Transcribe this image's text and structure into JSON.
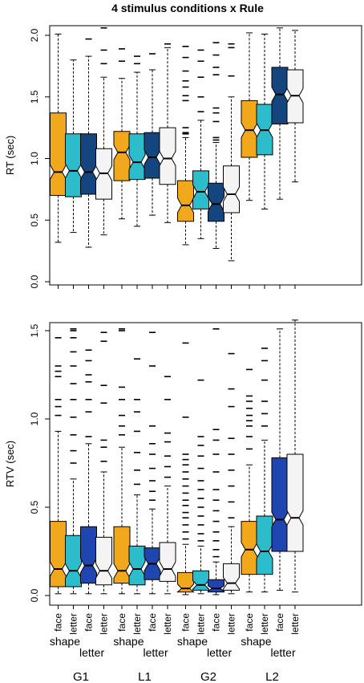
{
  "title": "4 stimulus conditions x Rule",
  "colors": {
    "shape_face": "#F2A81D",
    "shape_letter": "#2DBCCB",
    "letter_face": "#1C4E8F",
    "letter_letter": "#F4F4F4",
    "rt_letter_face": "#15457E",
    "rtv_letter_face": "#1F45B0"
  },
  "labels": {
    "groups": [
      "G1",
      "L1",
      "G2",
      "L2"
    ],
    "conditions": [
      "face",
      "letter",
      "face",
      "letter"
    ],
    "rules": [
      "shape",
      "letter"
    ]
  },
  "chart_data": [
    {
      "type": "boxplot",
      "notched": true,
      "ylabel": "RT (sec)",
      "ylim": [
        0,
        2.0
      ],
      "yticks": [
        "0.0",
        "0.5",
        "1.0",
        "1.5",
        "2.0"
      ],
      "groups": [
        "G1",
        "L1",
        "G2",
        "L2"
      ],
      "series": [
        {
          "rule": "shape",
          "condition": "face",
          "boxes": [
            {
              "group": "G1",
              "lw": 0.32,
              "q1": 0.7,
              "med": 0.89,
              "q3": 1.37,
              "uw": 2.01
            },
            {
              "group": "L1",
              "lw": 0.51,
              "q1": 0.82,
              "med": 1.05,
              "q3": 1.22,
              "uw": 1.65,
              "outliers": [
                1.79,
                1.89
              ]
            },
            {
              "group": "G2",
              "lw": 0.3,
              "q1": 0.49,
              "med": 0.62,
              "q3": 0.82,
              "uw": 1.17,
              "outliers": [
                1.2,
                1.21,
                1.25,
                1.47,
                1.51,
                1.58,
                1.63,
                1.71,
                1.82,
                1.91
              ]
            },
            {
              "group": "L2",
              "lw": 0.66,
              "q1": 1.01,
              "med": 1.23,
              "q3": 1.47,
              "uw": 2.02
            }
          ]
        },
        {
          "rule": "shape",
          "condition": "letter",
          "boxes": [
            {
              "group": "G1",
              "lw": 0.4,
              "q1": 0.69,
              "med": 0.9,
              "q3": 1.2,
              "uw": 1.8
            },
            {
              "group": "L1",
              "lw": 0.45,
              "q1": 0.83,
              "med": 0.97,
              "q3": 1.2,
              "uw": 1.7,
              "outliers": [
                1.77,
                1.83
              ]
            },
            {
              "group": "G2",
              "lw": 0.35,
              "q1": 0.59,
              "med": 0.73,
              "q3": 0.9,
              "uw": 1.31,
              "outliers": [
                1.38,
                1.5,
                1.66,
                1.79,
                1.88
              ]
            },
            {
              "group": "L2",
              "lw": 0.59,
              "q1": 1.03,
              "med": 1.23,
              "q3": 1.44,
              "uw": 2.01
            }
          ]
        },
        {
          "rule": "letter",
          "condition": "face",
          "boxes": [
            {
              "group": "G1",
              "lw": 0.28,
              "q1": 0.71,
              "med": 0.89,
              "q3": 1.2,
              "uw": 1.83,
              "outliers": [
                1.97
              ]
            },
            {
              "group": "L1",
              "lw": 0.54,
              "q1": 0.84,
              "med": 1.01,
              "q3": 1.21,
              "uw": 1.72,
              "outliers": [
                1.85
              ]
            },
            {
              "group": "G2",
              "lw": 0.27,
              "q1": 0.49,
              "med": 0.63,
              "q3": 0.8,
              "uw": 1.13,
              "outliers": [
                1.15,
                1.17,
                1.3,
                1.37,
                1.41,
                1.68,
                1.74,
                1.84,
                1.94
              ]
            },
            {
              "group": "L2",
              "lw": 0.67,
              "q1": 1.28,
              "med": 1.52,
              "q3": 1.74,
              "uw": 2.06
            }
          ]
        },
        {
          "rule": "letter",
          "condition": "letter",
          "boxes": [
            {
              "group": "G1",
              "lw": 0.38,
              "q1": 0.67,
              "med": 0.88,
              "q3": 1.08,
              "uw": 1.66,
              "outliers": [
                1.77,
                1.88,
                2.06
              ]
            },
            {
              "group": "L1",
              "lw": 0.48,
              "q1": 0.79,
              "med": 1.0,
              "q3": 1.25,
              "uw": 1.9,
              "outliers": [
                1.93
              ]
            },
            {
              "group": "G2",
              "lw": 0.17,
              "q1": 0.56,
              "med": 0.71,
              "q3": 0.94,
              "uw": 1.5,
              "outliers": [
                1.67,
                1.9,
                1.93
              ]
            },
            {
              "group": "L2",
              "lw": 0.81,
              "q1": 1.29,
              "med": 1.51,
              "q3": 1.72,
              "uw": 2.04
            }
          ]
        }
      ]
    },
    {
      "type": "boxplot",
      "notched": true,
      "ylabel": "RTV (sec)",
      "ylim": [
        0,
        1.5
      ],
      "yticks": [
        "0.0",
        "0.5",
        "1.0",
        "1.5"
      ],
      "groups": [
        "G1",
        "L1",
        "G2",
        "L2"
      ],
      "series": [
        {
          "rule": "shape",
          "condition": "face",
          "boxes": [
            {
              "group": "G1",
              "lw": 0.01,
              "q1": 0.05,
              "med": 0.15,
              "q3": 0.42,
              "uw": 0.93,
              "outliers": [
                1.02,
                1.07,
                1.11,
                1.24,
                1.27,
                1.3,
                1.46
              ]
            },
            {
              "group": "L1",
              "lw": 0.01,
              "q1": 0.07,
              "med": 0.14,
              "q3": 0.39,
              "uw": 0.84,
              "outliers": [
                0.91,
                0.96,
                1.02,
                1.11,
                1.18,
                1.5,
                1.51
              ]
            },
            {
              "group": "G2",
              "lw": 0.005,
              "q1": 0.02,
              "med": 0.04,
              "q3": 0.13,
              "uw": 0.29,
              "outliers": [
                0.32,
                0.36,
                0.4,
                0.44,
                0.47,
                0.51,
                0.54,
                0.58,
                0.62,
                0.66,
                0.7,
                0.74,
                0.77,
                0.8,
                1.01,
                1.43
              ]
            },
            {
              "group": "L2",
              "lw": 0.02,
              "q1": 0.12,
              "med": 0.26,
              "q3": 0.42,
              "uw": 0.74,
              "outliers": [
                0.83,
                0.9,
                0.96,
                0.99,
                1.02,
                1.06,
                1.1,
                1.13,
                1.28
              ]
            }
          ]
        },
        {
          "rule": "shape",
          "condition": "letter",
          "boxes": [
            {
              "group": "G1",
              "lw": 0.01,
              "q1": 0.05,
              "med": 0.14,
              "q3": 0.34,
              "uw": 0.66,
              "outliers": [
                0.75,
                0.82,
                0.91,
                1.01,
                1.11,
                1.2,
                1.3,
                1.38,
                1.46,
                1.5,
                1.51
              ]
            },
            {
              "group": "L1",
              "lw": 0.01,
              "q1": 0.06,
              "med": 0.15,
              "q3": 0.28,
              "uw": 0.57,
              "outliers": [
                0.63,
                0.71,
                0.81,
                0.93,
                1.04,
                1.11,
                1.34
              ]
            },
            {
              "group": "G2",
              "lw": 0.01,
              "q1": 0.03,
              "med": 0.06,
              "q3": 0.14,
              "uw": 0.28,
              "outliers": [
                0.31,
                0.35,
                0.4,
                0.45,
                0.5,
                0.55,
                0.6,
                0.65,
                0.72,
                0.79,
                0.85,
                0.9,
                1.22
              ]
            },
            {
              "group": "L2",
              "lw": 0.02,
              "q1": 0.12,
              "med": 0.25,
              "q3": 0.45,
              "uw": 0.88,
              "outliers": [
                0.96,
                1.03,
                1.1,
                1.22,
                1.33,
                1.4
              ]
            }
          ]
        },
        {
          "rule": "letter",
          "condition": "face",
          "boxes": [
            {
              "group": "G1",
              "lw": 0.01,
              "q1": 0.07,
              "med": 0.17,
              "q3": 0.39,
              "uw": 0.86,
              "outliers": [
                0.9,
                1.04,
                1.11,
                1.21,
                1.25,
                1.33,
                1.39
              ]
            },
            {
              "group": "L1",
              "lw": 0.01,
              "q1": 0.09,
              "med": 0.18,
              "q3": 0.27,
              "uw": 0.49,
              "outliers": [
                0.54,
                0.59,
                0.65,
                0.72,
                0.8,
                0.86,
                0.96,
                1.3,
                1.49
              ]
            },
            {
              "group": "G2",
              "lw": 0.005,
              "q1": 0.02,
              "med": 0.04,
              "q3": 0.09,
              "uw": 0.19,
              "outliers": [
                0.22,
                0.26,
                0.31,
                0.36,
                0.42,
                0.48,
                0.54,
                0.6,
                0.7,
                0.8,
                0.88,
                0.94,
                1.51
              ]
            },
            {
              "group": "L2",
              "lw": 0.03,
              "q1": 0.25,
              "med": 0.43,
              "q3": 0.78,
              "uw": 1.51
            }
          ]
        },
        {
          "rule": "letter",
          "condition": "letter",
          "boxes": [
            {
              "group": "G1",
              "lw": 0.01,
              "q1": 0.06,
              "med": 0.14,
              "q3": 0.33,
              "uw": 0.7,
              "outliers": [
                0.76,
                0.84,
                0.88,
                1.09,
                1.19,
                1.44,
                1.49
              ]
            },
            {
              "group": "L1",
              "lw": 0.01,
              "q1": 0.08,
              "med": 0.15,
              "q3": 0.3,
              "uw": 0.62,
              "outliers": [
                0.67,
                0.73,
                0.79,
                0.87,
                0.92,
                1.11,
                1.24
              ]
            },
            {
              "group": "G2",
              "lw": 0.01,
              "q1": 0.03,
              "med": 0.07,
              "q3": 0.18,
              "uw": 0.39,
              "outliers": [
                0.44,
                0.53,
                0.62,
                0.71,
                0.8,
                0.89,
                1.07,
                1.17,
                1.37
              ]
            },
            {
              "group": "L2",
              "lw": 0.02,
              "q1": 0.25,
              "med": 0.44,
              "q3": 0.8,
              "uw": 1.56
            }
          ]
        }
      ]
    }
  ]
}
